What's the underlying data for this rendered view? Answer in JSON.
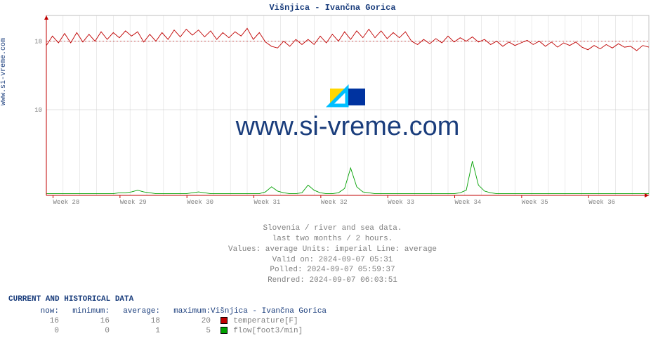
{
  "title": "Višnjica - Ivančna Gorica",
  "ylabel_side": "www.si-vreme.com",
  "watermark_text": "www.si-vreme.com",
  "watermark_color": "#1a3d7c",
  "watermark_fontsize": 38,
  "chart": {
    "type": "line",
    "background_color": "#ffffff",
    "plot_border_color": "#bfbfbf",
    "grid_color": "#cccccc",
    "axis_arrow_color": "#c00000",
    "xlim": [
      0,
      9
    ],
    "ylim": [
      0,
      21
    ],
    "yticks": [
      10,
      18
    ],
    "xtick_labels": [
      "Week 28",
      "Week 29",
      "Week 30",
      "Week 31",
      "Week 32",
      "Week 33",
      "Week 34",
      "Week 35",
      "Week 36"
    ],
    "xtick_positions": [
      0.1,
      1.1,
      2.1,
      3.1,
      4.1,
      5.1,
      6.1,
      7.1,
      8.1
    ],
    "dashed_ref_y": 18,
    "dashed_ref_color": "#c00000",
    "tick_label_color": "#808080",
    "tick_label_fontsize": 9,
    "series": {
      "temperature": {
        "color": "#c00000",
        "line_width": 0.9,
        "values": [
          17.5,
          18.6,
          17.8,
          18.9,
          17.8,
          19.0,
          17.9,
          18.8,
          18.0,
          19.1,
          18.2,
          19.0,
          18.4,
          19.2,
          18.6,
          19.1,
          17.9,
          18.8,
          18.0,
          19.0,
          18.2,
          19.3,
          18.5,
          19.4,
          18.7,
          19.3,
          18.5,
          19.2,
          18.2,
          19.0,
          18.4,
          19.1,
          18.6,
          19.5,
          18.2,
          19.0,
          17.9,
          17.4,
          17.2,
          18.0,
          17.4,
          18.2,
          17.6,
          18.2,
          17.6,
          18.6,
          17.8,
          18.8,
          18.0,
          19.1,
          18.2,
          19.2,
          18.4,
          19.4,
          18.4,
          19.2,
          18.3,
          19.0,
          18.4,
          19.1,
          18.0,
          17.6,
          18.2,
          17.7,
          18.3,
          17.8,
          18.6,
          17.9,
          18.4,
          18.0,
          18.5,
          17.9,
          18.2,
          17.6,
          18.0,
          17.4,
          17.9,
          17.5,
          17.8,
          18.1,
          17.6,
          18.0,
          17.4,
          17.9,
          17.3,
          17.8,
          17.5,
          17.9,
          17.3,
          17.0,
          17.5,
          17.1,
          17.6,
          17.2,
          17.7,
          17.3,
          17.4,
          16.9,
          17.5,
          17.3
        ]
      },
      "flow": {
        "color": "#00a000",
        "line_width": 0.9,
        "values": [
          0.2,
          0.2,
          0.2,
          0.2,
          0.2,
          0.2,
          0.2,
          0.2,
          0.2,
          0.2,
          0.2,
          0.2,
          0.3,
          0.3,
          0.4,
          0.6,
          0.4,
          0.3,
          0.2,
          0.2,
          0.2,
          0.2,
          0.2,
          0.2,
          0.3,
          0.4,
          0.3,
          0.2,
          0.2,
          0.2,
          0.2,
          0.2,
          0.2,
          0.2,
          0.2,
          0.2,
          0.4,
          1.0,
          0.5,
          0.3,
          0.2,
          0.2,
          0.3,
          1.2,
          0.6,
          0.3,
          0.2,
          0.2,
          0.3,
          0.8,
          3.2,
          1.0,
          0.4,
          0.3,
          0.2,
          0.2,
          0.2,
          0.2,
          0.2,
          0.2,
          0.2,
          0.2,
          0.2,
          0.2,
          0.2,
          0.2,
          0.2,
          0.2,
          0.3,
          0.6,
          4.0,
          1.2,
          0.5,
          0.3,
          0.2,
          0.2,
          0.2,
          0.2,
          0.2,
          0.2,
          0.2,
          0.2,
          0.2,
          0.2,
          0.2,
          0.2,
          0.2,
          0.2,
          0.2,
          0.2,
          0.2,
          0.2,
          0.2,
          0.2,
          0.2,
          0.2,
          0.2,
          0.2,
          0.2,
          0.2
        ]
      }
    },
    "subtile_logo_colors": [
      "#ffd700",
      "#00bfff",
      "#0033a0"
    ]
  },
  "subtitle_lines": [
    "Slovenia / river and sea data.",
    "last two months / 2 hours.",
    "Values: average  Units: imperial  Line: average",
    "Valid on: 2024-09-07 05:31",
    "Polled: 2024-09-07 05:59:37",
    "Rendred: 2024-09-07 06:03:51"
  ],
  "table": {
    "header": "CURRENT AND HISTORICAL DATA",
    "columns": [
      "now:",
      "minimum:",
      "average:",
      "maximum:"
    ],
    "name_label": "Višnjica - Ivančna Gorica",
    "rows": [
      {
        "values": [
          16,
          16,
          18,
          20
        ],
        "swatch": "#c00000",
        "label": "temperature[F]"
      },
      {
        "values": [
          0,
          0,
          1,
          5
        ],
        "swatch": "#00a000",
        "label": "flow[foot3/min]"
      }
    ]
  }
}
